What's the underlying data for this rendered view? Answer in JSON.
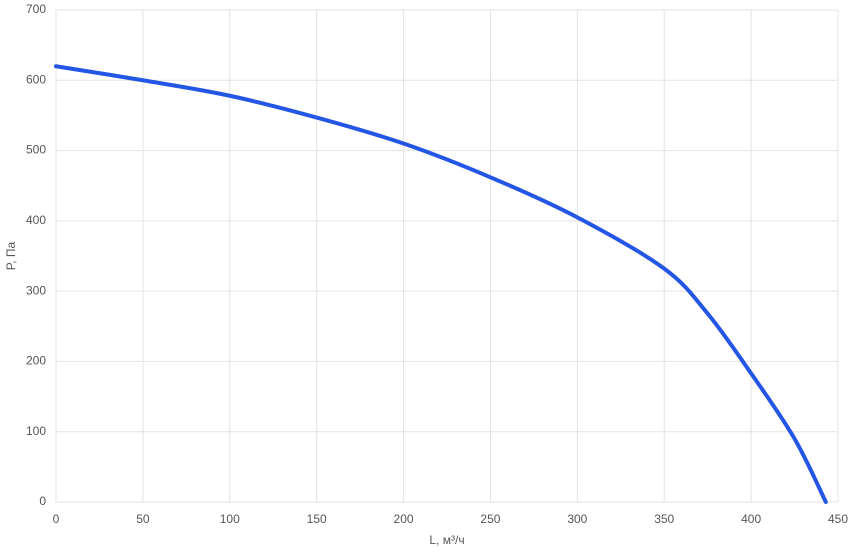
{
  "chart_data": {
    "type": "line",
    "x_label": "L, м³/ч",
    "y_label": "P, Па",
    "x": [
      0,
      50,
      100,
      150,
      200,
      250,
      300,
      350,
      375,
      400,
      425,
      443
    ],
    "series": [
      {
        "name": "P",
        "color": "#2456e6",
        "values": [
          620,
          600,
          578,
          547,
          510,
          462,
          405,
          332,
          268,
          183,
          90,
          0
        ]
      }
    ],
    "xlim": [
      0,
      450
    ],
    "xticks": [
      0,
      50,
      100,
      150,
      200,
      250,
      300,
      350,
      400,
      450
    ],
    "ylim": [
      0,
      700
    ],
    "yticks": [
      0,
      100,
      200,
      300,
      400,
      500,
      600,
      700
    ],
    "grid": true
  }
}
